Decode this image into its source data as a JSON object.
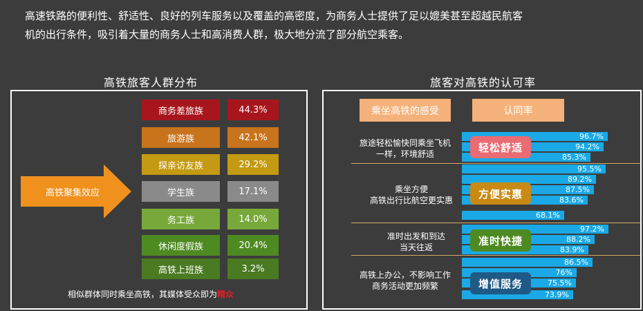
{
  "intro": {
    "line1": "高速铁路的便利性、舒适性、良好的列车服务以及覆盖的高密度，为商务人士提供了足以媲美甚至超越民航客",
    "line2": "机的出行条件，吸引着大量的商务人士和高消费人群，极大地分流了部分航空乘客。"
  },
  "left": {
    "title": "高铁旅客人群分布",
    "arrow_label": "高铁聚集效应",
    "arrow_color": "#f0911e",
    "groups": [
      {
        "name": "商务差旅族",
        "pct": "44.3%",
        "color": "#a8161d"
      },
      {
        "name": "旅游族",
        "pct": "42.1%",
        "color": "#c8741c"
      },
      {
        "name": "探亲访友族",
        "pct": "29.2%",
        "color": "#c49a12"
      },
      {
        "name": "学生族",
        "pct": "17.1%",
        "color": "#8a8a8a"
      },
      {
        "name": "务工族",
        "pct": "14.0%",
        "color": "#78a83a"
      },
      {
        "name": "休闲度假族",
        "pct": "20.4%",
        "color": "#4e8a22"
      },
      {
        "name": "高铁上班族",
        "pct": "3.2%",
        "color": "#4a7a22"
      }
    ],
    "note_prefix": "相似群体同时乘坐高铁，其媒体受众即为",
    "note_highlight": "精众"
  },
  "right": {
    "title": "旅客对高铁的认可率",
    "header_feel": "乘坐高铁的感受",
    "header_rate": "认同率",
    "bar_color": "#1aa9e6",
    "groups": [
      {
        "desc_line1": "旅途轻松愉快同乘坐飞机",
        "desc_line2": "一样，环境舒适",
        "badge": "轻松舒适",
        "badge_color": "#e96b73",
        "bars": [
          96.7,
          94.2,
          85.3
        ],
        "bar_labels": [
          "96.7%",
          "94.2%",
          "85.3%"
        ]
      },
      {
        "desc_line1": "乘坐方便",
        "desc_line2": "高铁出行比航空更实惠",
        "badge": "方便实惠",
        "badge_color": "#c88a14",
        "bars": [
          95.5,
          89.2,
          87.5,
          83.6,
          68.1
        ],
        "bar_labels": [
          "95.5%",
          "89.2%",
          "87.5%",
          "83.6%",
          "68.1%"
        ]
      },
      {
        "desc_line1": "准时出发和到达",
        "desc_line2": "当天往返",
        "badge": "准时快捷",
        "badge_color": "#4e8a22",
        "bars": [
          97.2,
          88.2,
          83.9
        ],
        "bar_labels": [
          "97.2%",
          "88.2%",
          "83.9%"
        ]
      },
      {
        "desc_line1": "高铁上办公，不影响工作",
        "desc_line2": "商务活动更加频繁",
        "badge": "增值服务",
        "badge_color": "#1f5a86",
        "bars": [
          86.5,
          76,
          75.5,
          73.9
        ],
        "bar_labels": [
          "86.5%",
          "76%",
          "75.5%",
          "73.9%"
        ]
      }
    ]
  }
}
